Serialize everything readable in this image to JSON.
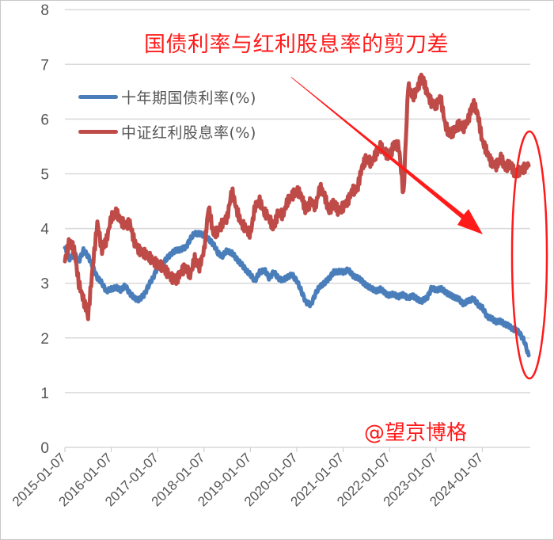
{
  "annotations": {
    "title": "国债利率与红利股息率的剪刀差",
    "watermark": "@望京博格",
    "color": "#ff1a1a"
  },
  "legend": {
    "items": [
      {
        "label": "十年期国债利率(%)",
        "color": "#4a7ebb"
      },
      {
        "label": "中证红利股息率(%)",
        "color": "#be4b48"
      }
    ]
  },
  "chart_data": {
    "type": "line",
    "title": "国债利率与红利股息率的剪刀差",
    "xlabel": "",
    "ylabel": "",
    "ylim": [
      0,
      8
    ],
    "yticks": [
      0,
      1,
      2,
      3,
      4,
      5,
      6,
      7,
      8
    ],
    "xticks": [
      "2015-01-07",
      "2016-01-07",
      "2017-01-07",
      "2018-01-07",
      "2019-01-07",
      "2020-01-07",
      "2021-01-07",
      "2022-01-07",
      "2023-01-07",
      "2024-01-07"
    ],
    "grid": true,
    "legend_position": "upper-left",
    "x": [
      2015.0,
      2015.1,
      2015.2,
      2015.3,
      2015.4,
      2015.5,
      2015.6,
      2015.7,
      2015.8,
      2015.9,
      2016.0,
      2016.1,
      2016.2,
      2016.3,
      2016.4,
      2016.5,
      2016.6,
      2016.7,
      2016.8,
      2016.9,
      2017.0,
      2017.1,
      2017.2,
      2017.3,
      2017.4,
      2017.5,
      2017.6,
      2017.7,
      2017.8,
      2017.9,
      2018.0,
      2018.1,
      2018.2,
      2018.3,
      2018.4,
      2018.5,
      2018.6,
      2018.7,
      2018.8,
      2018.9,
      2019.0,
      2019.1,
      2019.2,
      2019.3,
      2019.4,
      2019.5,
      2019.6,
      2019.7,
      2019.8,
      2019.9,
      2020.0,
      2020.1,
      2020.2,
      2020.3,
      2020.4,
      2020.5,
      2020.6,
      2020.7,
      2020.8,
      2020.9,
      2021.0,
      2021.1,
      2021.2,
      2021.3,
      2021.4,
      2021.5,
      2021.6,
      2021.7,
      2021.8,
      2021.9,
      2022.0,
      2022.1,
      2022.2,
      2022.3,
      2022.4,
      2022.5,
      2022.6,
      2022.7,
      2022.8,
      2022.9,
      2023.0,
      2023.1,
      2023.2,
      2023.3,
      2023.4,
      2023.5,
      2023.6,
      2023.7,
      2023.8,
      2023.9,
      2024.0,
      2024.1,
      2024.2,
      2024.3,
      2024.4,
      2024.5,
      2024.6,
      2024.7,
      2024.8,
      2024.9,
      2025.0
    ],
    "series": [
      {
        "name": "十年期国债利率(%)",
        "color": "#4a7ebb",
        "values": [
          3.65,
          3.45,
          3.55,
          3.4,
          3.6,
          3.5,
          3.3,
          3.1,
          3.0,
          2.85,
          2.9,
          2.92,
          2.88,
          2.95,
          2.82,
          2.72,
          2.7,
          2.78,
          2.95,
          3.1,
          3.3,
          3.35,
          3.45,
          3.55,
          3.6,
          3.62,
          3.65,
          3.8,
          3.92,
          3.9,
          3.88,
          3.8,
          3.72,
          3.55,
          3.5,
          3.6,
          3.55,
          3.45,
          3.35,
          3.25,
          3.15,
          3.05,
          3.2,
          3.25,
          3.1,
          3.2,
          3.1,
          3.05,
          3.12,
          3.15,
          3.05,
          2.85,
          2.65,
          2.6,
          2.8,
          2.95,
          3.0,
          3.1,
          3.2,
          3.22,
          3.2,
          3.25,
          3.15,
          3.1,
          3.05,
          2.95,
          2.92,
          2.85,
          2.9,
          2.82,
          2.78,
          2.8,
          2.75,
          2.8,
          2.72,
          2.78,
          2.7,
          2.68,
          2.72,
          2.9,
          2.88,
          2.9,
          2.85,
          2.78,
          2.75,
          2.7,
          2.62,
          2.68,
          2.72,
          2.62,
          2.55,
          2.4,
          2.35,
          2.3,
          2.3,
          2.25,
          2.2,
          2.15,
          2.1,
          1.95,
          1.68
        ]
      },
      {
        "name": "中证红利股息率(%)",
        "color": "#be4b48",
        "values": [
          3.4,
          3.8,
          3.6,
          3.0,
          2.7,
          2.4,
          3.3,
          4.1,
          3.6,
          3.8,
          4.2,
          4.3,
          4.15,
          4.05,
          4.1,
          3.75,
          3.6,
          3.55,
          3.5,
          3.4,
          3.35,
          3.3,
          3.2,
          3.1,
          3.05,
          3.2,
          3.3,
          3.15,
          3.45,
          3.3,
          3.6,
          4.4,
          3.9,
          3.95,
          4.1,
          4.2,
          4.7,
          4.35,
          4.1,
          4.0,
          3.9,
          4.4,
          4.5,
          4.3,
          4.2,
          4.0,
          4.3,
          4.25,
          4.5,
          4.6,
          4.7,
          4.6,
          4.3,
          4.5,
          4.4,
          4.75,
          4.6,
          4.3,
          4.5,
          4.3,
          4.4,
          4.5,
          4.7,
          4.7,
          5.1,
          5.3,
          5.2,
          5.35,
          5.5,
          5.4,
          5.3,
          5.55,
          5.5,
          4.6,
          6.6,
          6.4,
          6.55,
          6.8,
          6.5,
          6.3,
          6.25,
          6.4,
          5.9,
          5.7,
          5.8,
          5.9,
          5.85,
          6.0,
          6.3,
          6.1,
          5.6,
          5.4,
          5.2,
          5.15,
          5.3,
          5.1,
          5.2,
          5.0,
          5.05,
          5.1,
          5.15
        ]
      }
    ]
  }
}
